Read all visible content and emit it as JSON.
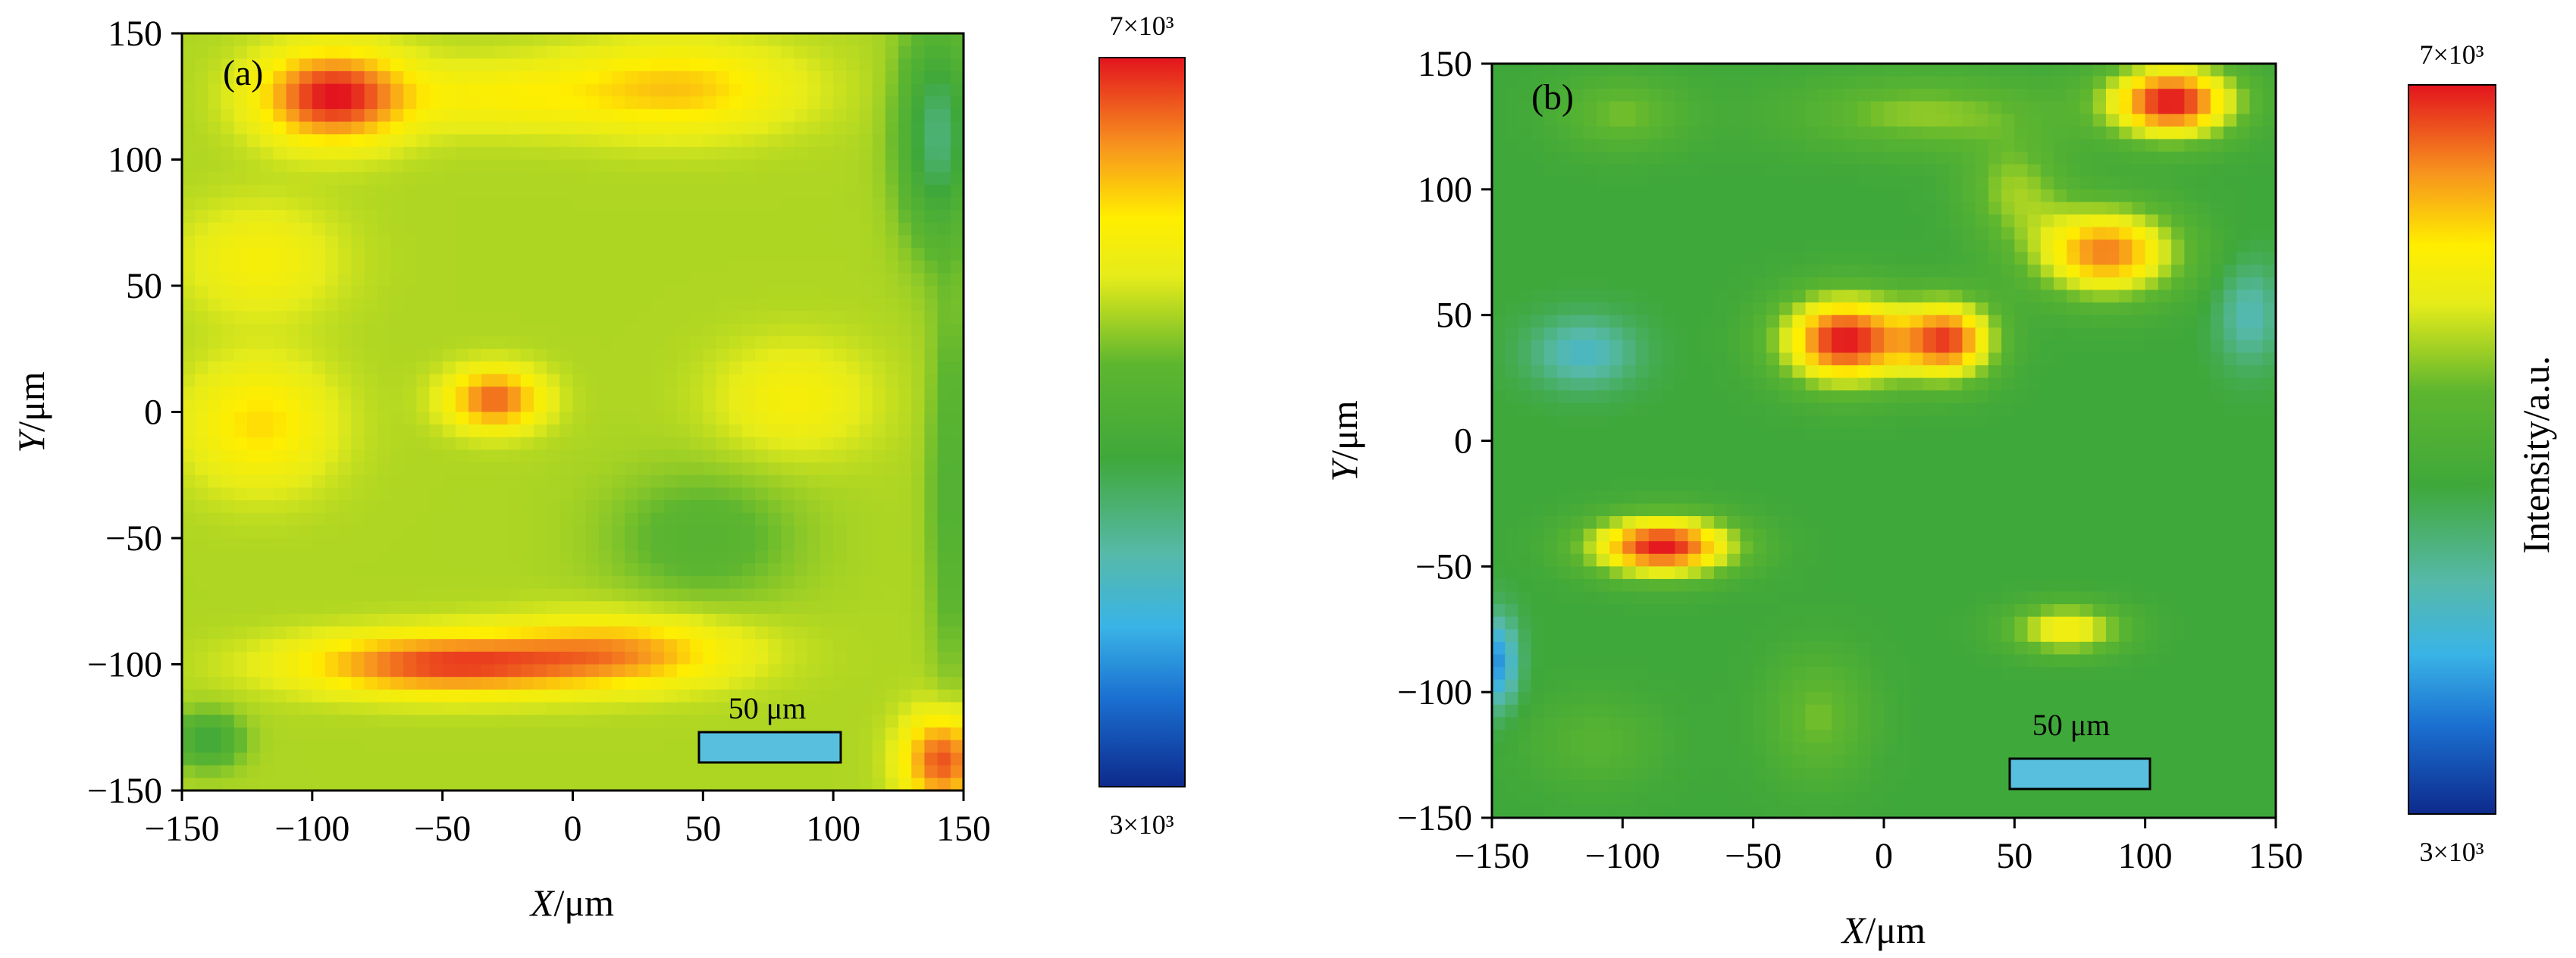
{
  "chart_data": [
    {
      "type": "heatmap",
      "panel_label": "(a)",
      "xlabel": "X/μm",
      "ylabel": "Y/μm",
      "xlim": [
        -150,
        150
      ],
      "ylim": [
        -150,
        150
      ],
      "xticks": [
        "−150",
        "−100",
        "−50",
        "0",
        "50",
        "100",
        "150"
      ],
      "yticks": [
        "150",
        "100",
        "50",
        "0",
        "−50",
        "−100",
        "−150"
      ],
      "colorbar": {
        "max_label": "7×10³",
        "min_label": "3×10³",
        "range": [
          3000,
          7000
        ],
        "title": ""
      },
      "scale_bar_label": "50 μm",
      "background_value": 5600,
      "blobs": [
        {
          "x": -92,
          "y": 125,
          "rx": 28,
          "ry": 18,
          "v": 7000
        },
        {
          "x": 40,
          "y": 128,
          "rx": 45,
          "ry": 18,
          "v": 6300
        },
        {
          "x": -30,
          "y": 125,
          "rx": 40,
          "ry": 14,
          "v": 6000
        },
        {
          "x": -120,
          "y": 60,
          "rx": 30,
          "ry": 22,
          "v": 6000
        },
        {
          "x": -30,
          "y": 5,
          "rx": 18,
          "ry": 12,
          "v": 6700
        },
        {
          "x": -120,
          "y": -5,
          "rx": 28,
          "ry": 25,
          "v": 6200
        },
        {
          "x": 85,
          "y": 5,
          "rx": 30,
          "ry": 22,
          "v": 6000
        },
        {
          "x": -50,
          "y": -100,
          "rx": 55,
          "ry": 12,
          "v": 6800
        },
        {
          "x": 20,
          "y": -95,
          "rx": 45,
          "ry": 14,
          "v": 6400
        },
        {
          "x": 142,
          "y": -138,
          "rx": 15,
          "ry": 18,
          "v": 6800
        },
        {
          "x": 50,
          "y": -50,
          "rx": 35,
          "ry": 25,
          "v": 5200
        },
        {
          "x": 140,
          "y": 110,
          "rx": 14,
          "ry": 40,
          "v": 4500
        },
        {
          "x": 145,
          "y": -30,
          "rx": 8,
          "ry": 70,
          "v": 5100
        },
        {
          "x": -140,
          "y": -130,
          "rx": 12,
          "ry": 10,
          "v": 4800
        }
      ]
    },
    {
      "type": "heatmap",
      "panel_label": "(b)",
      "xlabel": "X/μm",
      "ylabel": "Y/μm",
      "xlim": [
        -150,
        150
      ],
      "ylim": [
        -150,
        150
      ],
      "xticks": [
        "−150",
        "−100",
        "−50",
        "0",
        "50",
        "100",
        "150"
      ],
      "yticks": [
        "150",
        "100",
        "50",
        "0",
        "−50",
        "−100",
        "−150"
      ],
      "colorbar": {
        "max_label": "7×10³",
        "min_label": "3×10³",
        "range": [
          3000,
          7000
        ],
        "title": "Intensity/a.u."
      },
      "scale_bar_label": "50 μm",
      "background_value": 4800,
      "blobs": [
        {
          "x": -15,
          "y": 40,
          "rx": 25,
          "ry": 18,
          "v": 7000
        },
        {
          "x": 25,
          "y": 40,
          "rx": 18,
          "ry": 16,
          "v": 6700
        },
        {
          "x": -85,
          "y": -42,
          "rx": 28,
          "ry": 12,
          "v": 7000
        },
        {
          "x": 110,
          "y": 135,
          "rx": 25,
          "ry": 15,
          "v": 7000
        },
        {
          "x": 85,
          "y": 75,
          "rx": 28,
          "ry": 18,
          "v": 6600
        },
        {
          "x": 70,
          "y": -75,
          "rx": 22,
          "ry": 10,
          "v": 6000
        },
        {
          "x": 15,
          "y": 130,
          "rx": 50,
          "ry": 15,
          "v": 5500
        },
        {
          "x": 50,
          "y": 100,
          "rx": 20,
          "ry": 20,
          "v": 5500
        },
        {
          "x": -100,
          "y": 130,
          "rx": 25,
          "ry": 15,
          "v": 5400
        },
        {
          "x": -25,
          "y": -110,
          "rx": 20,
          "ry": 25,
          "v": 5400
        },
        {
          "x": -110,
          "y": -120,
          "rx": 25,
          "ry": 18,
          "v": 5200
        },
        {
          "x": -115,
          "y": 35,
          "rx": 20,
          "ry": 14,
          "v": 4100
        },
        {
          "x": -148,
          "y": -88,
          "rx": 8,
          "ry": 18,
          "v": 3700
        },
        {
          "x": 140,
          "y": 50,
          "rx": 12,
          "ry": 20,
          "v": 4200
        }
      ]
    }
  ]
}
